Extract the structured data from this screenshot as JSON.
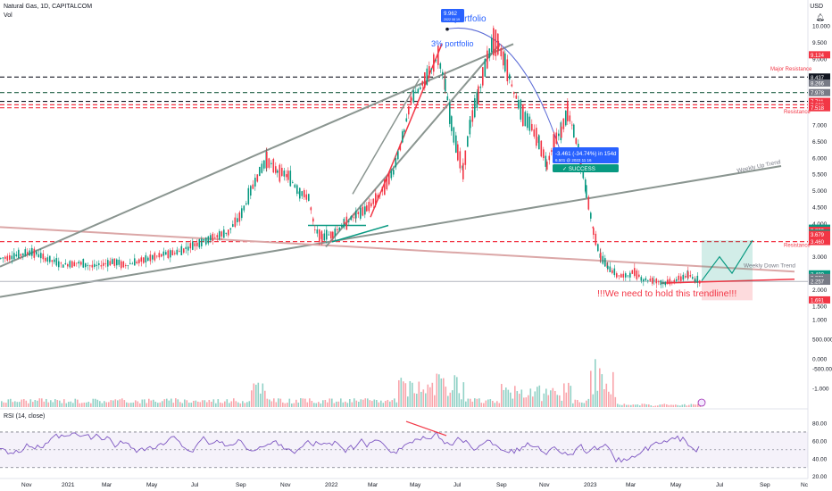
{
  "header": {
    "symbol_line": "Natural Gas, 1D, CAPITALCOM",
    "vol_label": "Vol",
    "currency": "USD",
    "rsi_label": "RSI (14, close)"
  },
  "chart_data": {
    "type": "candlestick",
    "x_ticks": [
      "Nov",
      "2021",
      "Mar",
      "May",
      "Jul",
      "Sep",
      "Nov",
      "2022",
      "Mar",
      "May",
      "Jul",
      "Sep",
      "Nov",
      "2023",
      "Mar",
      "May",
      "Jul",
      "Sep",
      "Nc"
    ],
    "price_axis": {
      "ticks": [
        "10.000",
        "9.500",
        "9.000",
        "8.500",
        "8.000",
        "7.500",
        "7.000",
        "6.500",
        "6.000",
        "5.500",
        "5.000",
        "4.500",
        "4.000",
        "3.500",
        "3.000",
        "2.500",
        "2.000",
        "1.500"
      ],
      "tick_values": [
        10.0,
        9.5,
        9.0,
        8.5,
        8.0,
        7.5,
        7.0,
        6.5,
        6.0,
        5.5,
        5.0,
        4.5,
        4.0,
        3.5,
        3.0,
        2.5,
        2.0,
        1.5
      ],
      "range": [
        1.5,
        10.4
      ],
      "labels": [
        {
          "value": 9.124,
          "text": "9.124",
          "color": "#f23645"
        },
        {
          "value": 8.449,
          "text": "8.449",
          "color": "#131722"
        },
        {
          "value": 8.437,
          "text": "8.437",
          "color": "#131722"
        },
        {
          "value": 8.266,
          "text": "8.266",
          "color": "#787b86"
        },
        {
          "value": 7.978,
          "text": "7.978",
          "color": "#787b86"
        },
        {
          "value": 7.711,
          "text": "7.711",
          "color": "#f23645"
        },
        {
          "value": 7.608,
          "text": "7.608",
          "color": "#f23645"
        },
        {
          "value": 7.518,
          "text": "7.518",
          "color": "#f23645"
        },
        {
          "value": 3.866,
          "text": "3.866",
          "color": "#089981"
        },
        {
          "value": 3.829,
          "text": "3.829",
          "color": "#089981"
        },
        {
          "value": 3.8,
          "text": "3.800",
          "color": "#f23645"
        },
        {
          "value": 3.716,
          "text": "3.716",
          "color": "#089981"
        },
        {
          "value": 3.695,
          "text": "3.695",
          "color": "#089981"
        },
        {
          "value": 3.679,
          "text": "3.679",
          "color": "#f23645"
        },
        {
          "value": 3.495,
          "text": "3.495",
          "color": "#f23645"
        },
        {
          "value": 3.46,
          "text": "3.460",
          "color": "#f23645"
        },
        {
          "value": 2.48,
          "text": "2.480",
          "color": "#089981"
        },
        {
          "value": 2.371,
          "text": "2.371",
          "color": "#787b86"
        },
        {
          "value": 2.282,
          "text": "2.282",
          "color": "#787b86"
        },
        {
          "value": 2.259,
          "text": "2.259",
          "color": "#089981"
        },
        {
          "value": 2.257,
          "text": "2.257",
          "color": "#787b86"
        },
        {
          "value": 1.691,
          "text": "1.691",
          "color": "#f23645"
        }
      ]
    },
    "volume_axis": {
      "ticks": [
        "1.000",
        "500.000",
        "0.000",
        "-500.000",
        "-1.000"
      ]
    },
    "rsi_axis": {
      "ticks": [
        "80.00",
        "60.00",
        "40.00",
        "20.00"
      ],
      "tick_values": [
        80,
        60,
        40,
        20
      ],
      "band": [
        30,
        70
      ]
    },
    "horizontal_levels": [
      {
        "value": 8.449,
        "style": "dashed",
        "color": "#131722"
      },
      {
        "value": 7.978,
        "style": "dashed",
        "color": "#1e5e44"
      },
      {
        "value": 7.711,
        "style": "dashed",
        "color": "#131722"
      },
      {
        "value": 7.608,
        "style": "dashed",
        "color": "#f23645"
      },
      {
        "value": 7.518,
        "style": "dashed",
        "color": "#f23645"
      },
      {
        "value": 3.46,
        "style": "dashed",
        "color": "#f23645"
      }
    ],
    "annotations": {
      "major_resistance": "Major Resistance",
      "resistance_upper": "Resistance",
      "resistance_lower": "Resistance",
      "weekly_up_trend": "Weekly Up Trend",
      "weekly_down_trend": "Weekly Down Trend",
      "portfolio": "portfolio",
      "portfolio_pct": "3% portfolio",
      "hold_trendline": "!!!We need to hold this trendline!!!",
      "measure_main": "-3.461 (-34.74%) in 154d",
      "measure_sub": "6.501 @ 2022 11 16",
      "success_label": "✓ SUCCESS",
      "peak_value": "9.962",
      "peak_sub": "2022 08 19"
    },
    "colors": {
      "up": "#089981",
      "down": "#f23645",
      "rsi": "#7e57c2",
      "trend": "#8a9590"
    },
    "price_series_points": [
      [
        0,
        2.95
      ],
      [
        20,
        3.05
      ],
      [
        35,
        3.15
      ],
      [
        50,
        2.95
      ],
      [
        70,
        2.75
      ],
      [
        85,
        2.82
      ],
      [
        105,
        2.7
      ],
      [
        125,
        2.85
      ],
      [
        140,
        2.75
      ],
      [
        160,
        2.9
      ],
      [
        180,
        3.05
      ],
      [
        200,
        3.15
      ],
      [
        215,
        3.35
      ],
      [
        235,
        3.55
      ],
      [
        255,
        3.75
      ],
      [
        270,
        4.3
      ],
      [
        285,
        5.3
      ],
      [
        298,
        5.95
      ],
      [
        310,
        5.6
      ],
      [
        322,
        5.45
      ],
      [
        335,
        4.95
      ],
      [
        345,
        4.8
      ],
      [
        352,
        3.8
      ],
      [
        360,
        3.6
      ],
      [
        372,
        3.7
      ],
      [
        385,
        4.0
      ],
      [
        398,
        4.25
      ],
      [
        410,
        4.45
      ],
      [
        425,
        4.9
      ],
      [
        440,
        5.6
      ],
      [
        452,
        6.8
      ],
      [
        460,
        7.8
      ],
      [
        470,
        8.1
      ],
      [
        480,
        8.6
      ],
      [
        490,
        9.1
      ],
      [
        498,
        8.2
      ],
      [
        505,
        7.0
      ],
      [
        512,
        6.2
      ],
      [
        518,
        5.6
      ],
      [
        526,
        7.0
      ],
      [
        535,
        7.9
      ],
      [
        545,
        9.0
      ],
      [
        552,
        9.55
      ],
      [
        558,
        9.4
      ],
      [
        565,
        8.9
      ],
      [
        575,
        8.0
      ],
      [
        585,
        7.3
      ],
      [
        595,
        6.9
      ],
      [
        603,
        6.5
      ],
      [
        612,
        5.8
      ],
      [
        620,
        6.5
      ],
      [
        628,
        6.8
      ],
      [
        635,
        7.4
      ],
      [
        642,
        6.8
      ],
      [
        650,
        5.8
      ],
      [
        656,
        5.0
      ],
      [
        664,
        3.8
      ],
      [
        672,
        3.0
      ],
      [
        680,
        2.7
      ],
      [
        690,
        2.45
      ],
      [
        700,
        2.4
      ],
      [
        710,
        2.55
      ],
      [
        720,
        2.3
      ],
      [
        732,
        2.3
      ],
      [
        742,
        2.2
      ],
      [
        752,
        2.25
      ],
      [
        762,
        2.35
      ],
      [
        770,
        2.45
      ],
      [
        778,
        2.3
      ],
      [
        784,
        2.26
      ]
    ],
    "projection_points": [
      [
        786,
        2.27
      ],
      [
        806,
        3.0
      ],
      [
        820,
        2.5
      ],
      [
        843,
        3.5
      ]
    ]
  }
}
